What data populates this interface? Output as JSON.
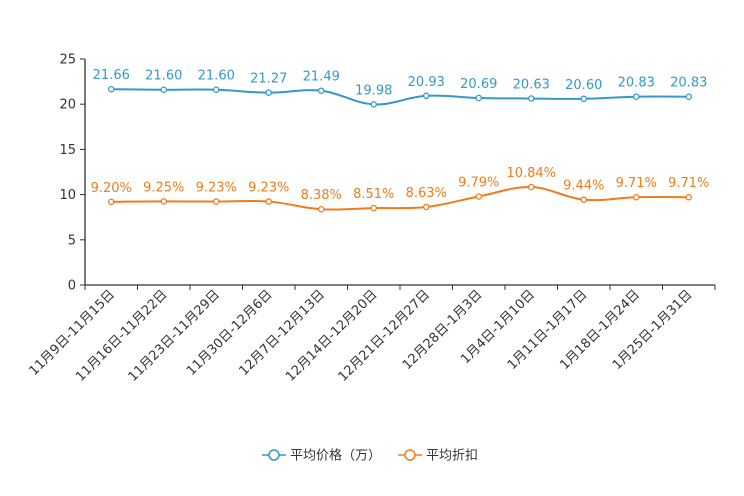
{
  "chart_data": {
    "type": "line",
    "title": "",
    "xlabel": "",
    "ylabel": "",
    "ylim": [
      0,
      25
    ],
    "yticks": [
      "0",
      "5",
      "10",
      "15",
      "20",
      "25"
    ],
    "grid": false,
    "legend_position": "bottom-center",
    "categories": [
      "11月9日-11月15日",
      "11月16日-11月22日",
      "11月23日-11月29日",
      "11月30日-12月6日",
      "12月7日-12月13日",
      "12月14日-12月20日",
      "12月21日-12月27日",
      "12月28日-1月3日",
      "1月4日-1月10日",
      "1月11日-1月17日",
      "1月18日-1月24日",
      "1月25日-1月31日"
    ],
    "series": [
      {
        "name": "平均价格（万）",
        "color": "#3398cc",
        "values": [
          21.66,
          21.6,
          21.6,
          21.27,
          21.49,
          19.98,
          20.93,
          20.69,
          20.63,
          20.6,
          20.83,
          20.83
        ],
        "labels": [
          "21.66",
          "21.60",
          "21.60",
          "21.27",
          "21.49",
          "19.98",
          "20.93",
          "20.69",
          "20.63",
          "20.60",
          "20.83",
          "20.83"
        ]
      },
      {
        "name": "平均折扣",
        "color": "#f07c1c",
        "values": [
          9.2,
          9.25,
          9.23,
          9.23,
          8.38,
          8.51,
          8.63,
          9.79,
          10.84,
          9.44,
          9.71,
          9.71
        ],
        "labels": [
          "9.20%",
          "9.25%",
          "9.23%",
          "9.23%",
          "8.38%",
          "8.51%",
          "8.63%",
          "9.79%",
          "10.84%",
          "9.44%",
          "9.71%",
          "9.71%"
        ]
      }
    ]
  }
}
